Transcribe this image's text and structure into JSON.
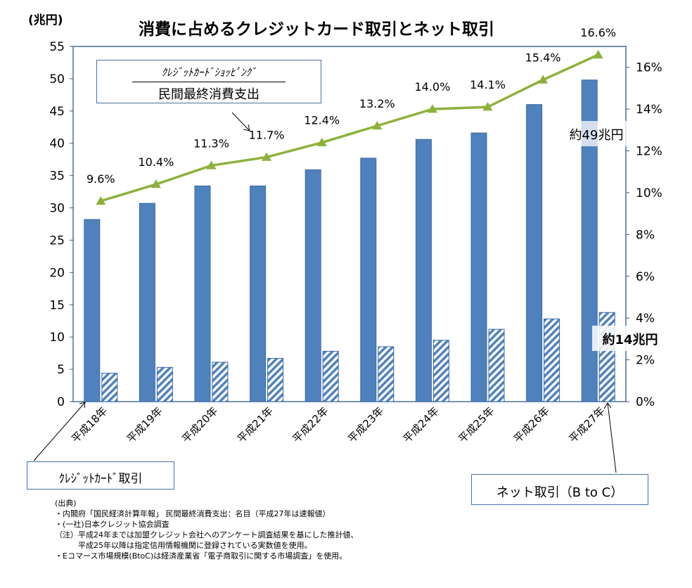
{
  "chart_data": {
    "type": "bar",
    "title": "消費に占めるクレジットカード取引とネット取引",
    "y_unit": "(兆円)",
    "categories": [
      "平成18年",
      "平成19年",
      "平成20年",
      "平成21年",
      "平成22年",
      "平成23年",
      "平成24年",
      "平成25年",
      "平成26年",
      "平成27年"
    ],
    "series": [
      {
        "name": "クレジットカード取引",
        "kind": "bar-solid",
        "axis": "left",
        "values": [
          28.2,
          30.7,
          33.4,
          33.4,
          35.9,
          37.7,
          40.6,
          41.6,
          46.0,
          49.8
        ]
      },
      {
        "name": "ネット取引（B to C）",
        "kind": "bar-hatched",
        "axis": "left",
        "values": [
          4.4,
          5.3,
          6.1,
          6.7,
          7.8,
          8.5,
          9.5,
          11.2,
          12.8,
          13.8
        ]
      },
      {
        "name": "クレジットカードショッピング / 民間最終消費支出",
        "kind": "line",
        "axis": "right",
        "values": [
          9.6,
          10.4,
          11.3,
          11.7,
          12.4,
          13.2,
          14.0,
          14.1,
          15.4,
          16.6
        ],
        "labels": [
          "9.6%",
          "10.4%",
          "11.3%",
          "11.7%",
          "12.4%",
          "13.2%",
          "14.0%",
          "14.1%",
          "15.4%",
          "16.6%"
        ]
      }
    ],
    "y_left": {
      "min": 0,
      "max": 55,
      "step": 5,
      "ticks": [
        "0",
        "5",
        "10",
        "15",
        "20",
        "25",
        "30",
        "35",
        "40",
        "45",
        "50",
        "55"
      ]
    },
    "y_right": {
      "min": 0,
      "max": 17,
      "step": 2,
      "ticks": [
        "0%",
        "2%",
        "4%",
        "6%",
        "8%",
        "10%",
        "12%",
        "14%",
        "16%"
      ]
    },
    "grid": false,
    "colors": {
      "bar": "#4f81bd",
      "bar_edge": "#3a6aa8",
      "hatch": "#4f81bd",
      "line": "#8db13c",
      "frame": "#4a6fa5"
    },
    "annotations": {
      "ratio_box_top": "ｸﾚｼﾞｯﾄｶｰﾄﾞｼｮｯﾋﾟﾝｸﾞ",
      "ratio_box_bottom": "民間最終消費支出",
      "credit_box": "ｸﾚｼﾞｯﾄｶｰﾄﾞ取引",
      "net_box": "ネット取引（B to C）",
      "approx_49": "約49兆円",
      "approx_14": "約14兆円"
    }
  },
  "notes": {
    "heading": "(出典)",
    "lines": [
      "・内閣府「国民経済計算年報」 民間最終消費支出：名目（平成27年は速報値）",
      "・(一社)日本クレジット協会調査",
      "（注）平成24年までは加盟クレジット会社へのアンケート調査結果を基にした推計値、",
      "　　　平成25年以降は指定信用情報機関に登録されている実数値を使用。",
      "・Eコマース市場規模(BtoC)は経済産業省「電子商取引に関する市場調査」を使用。"
    ]
  }
}
